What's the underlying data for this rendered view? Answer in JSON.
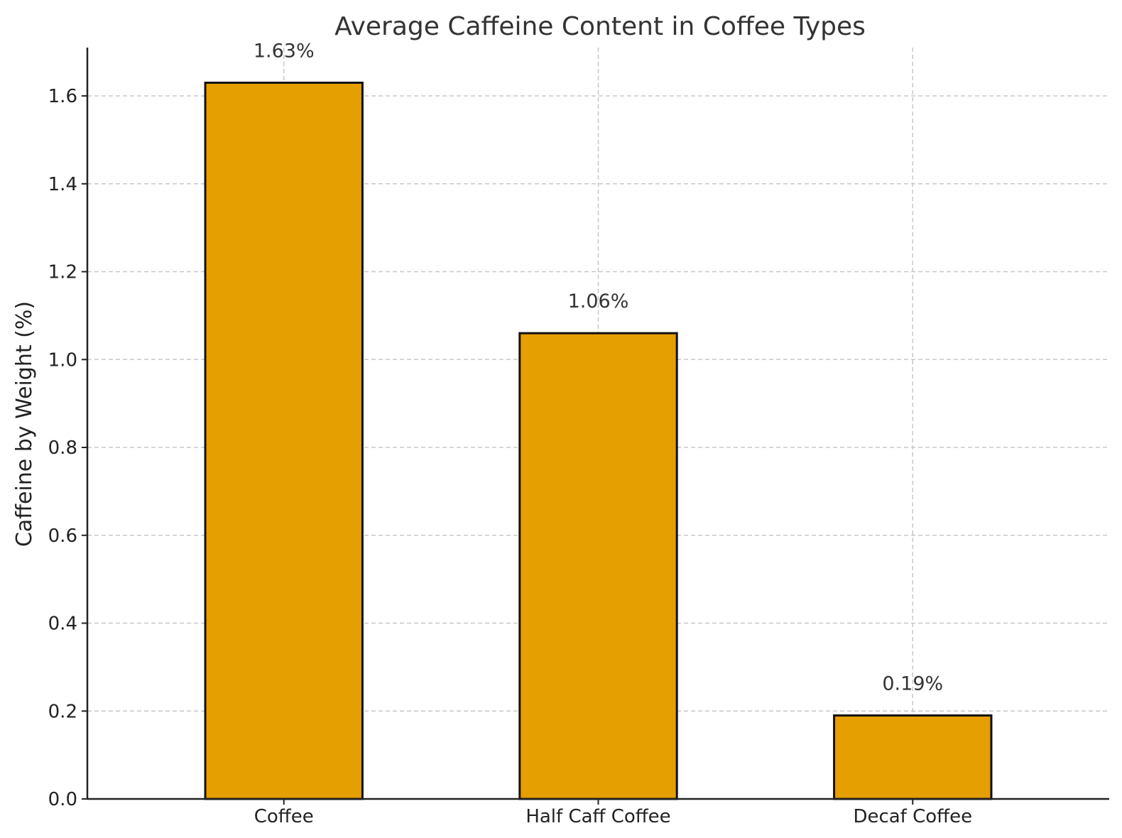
{
  "chart_data": {
    "type": "bar",
    "title": "Average Caffeine Content in Coffee Types",
    "xlabel": "",
    "ylabel": "Caffeine by Weight (%)",
    "categories": [
      "Coffee",
      "Half Caff Coffee",
      "Decaf Coffee"
    ],
    "values": [
      1.63,
      1.06,
      0.19
    ],
    "value_labels": [
      "1.63%",
      "1.06%",
      "0.19%"
    ],
    "ylim": [
      0,
      1.71
    ],
    "yticks": [
      0.0,
      0.2,
      0.4,
      0.6,
      0.8,
      1.0,
      1.2,
      1.4,
      1.6
    ],
    "ytick_labels": [
      "0.0",
      "0.2",
      "0.4",
      "0.6",
      "0.8",
      "1.0",
      "1.2",
      "1.4",
      "1.6"
    ],
    "grid": true,
    "bar_color": "#E69F00",
    "edge_color": "#111111"
  }
}
